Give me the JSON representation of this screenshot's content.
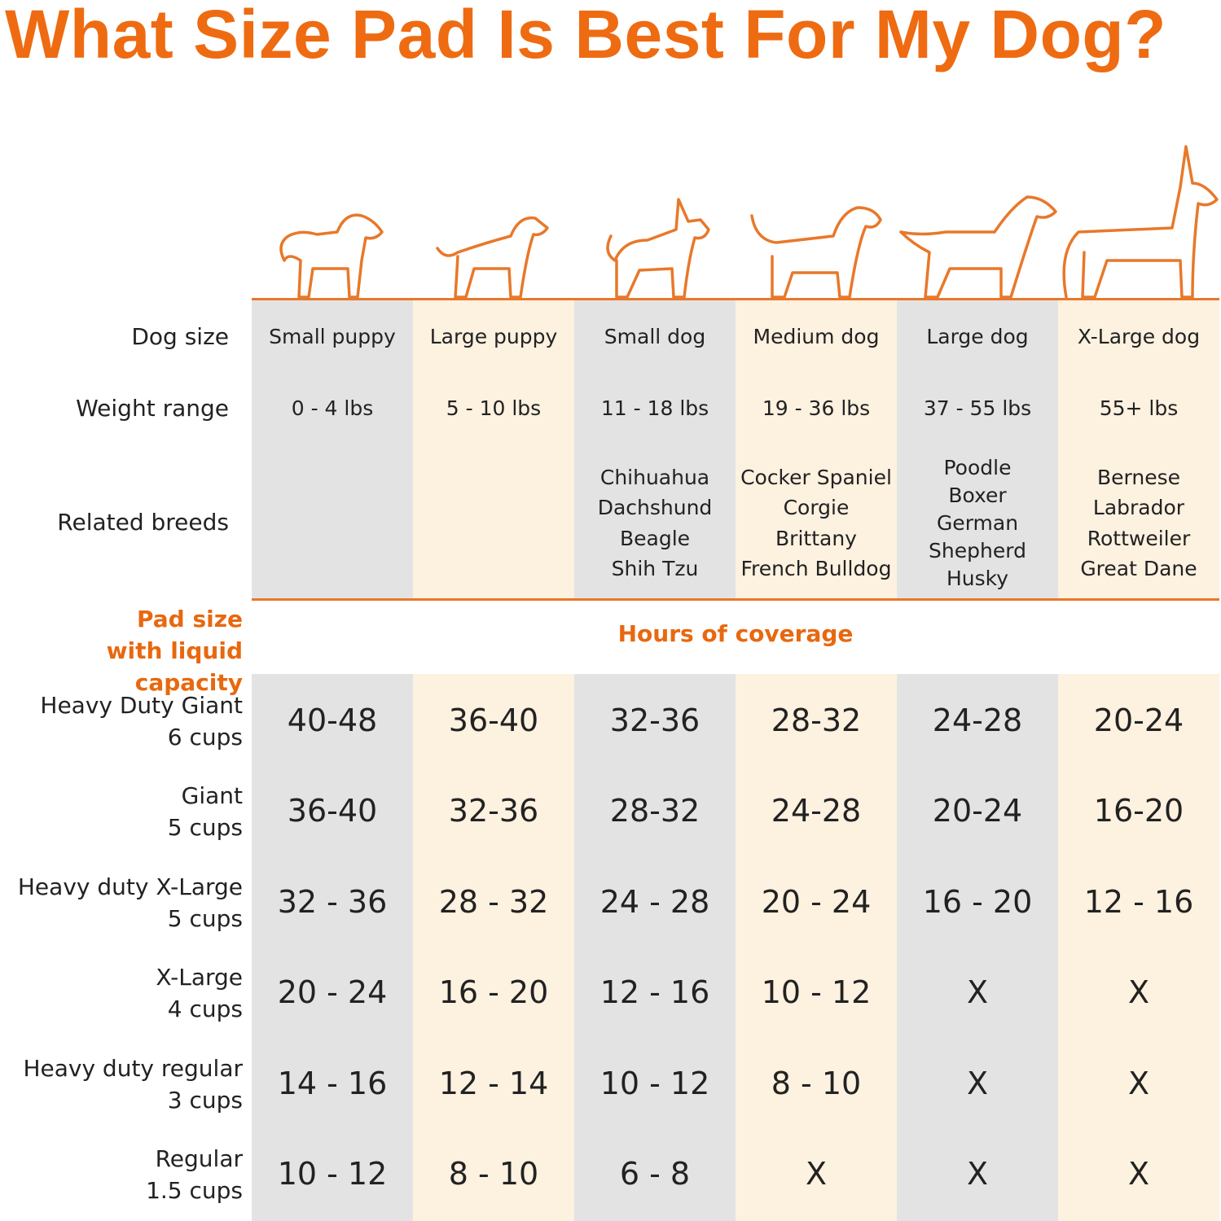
{
  "title": "What Size Pad Is Best For My Dog?",
  "colors": {
    "accent": "#ee6b12",
    "column_gray": "#e3e3e3",
    "column_cream": "#fdf1e0"
  },
  "row_labels": {
    "dog_size": "Dog size",
    "weight_range": "Weight range",
    "related_breeds": "Related breeds"
  },
  "pad_header": {
    "line1": "Pad size",
    "line2": "with liquid capacity"
  },
  "coverage_header": "Hours of coverage",
  "columns": [
    {
      "icon": "small-puppy-icon",
      "size": "Small puppy",
      "weight": "0 - 4 lbs",
      "breeds": []
    },
    {
      "icon": "large-puppy-icon",
      "size": "Large puppy",
      "weight": "5 - 10 lbs",
      "breeds": []
    },
    {
      "icon": "small-dog-icon",
      "size": "Small dog",
      "weight": "11 - 18 lbs",
      "breeds": [
        "Chihuahua",
        "Dachshund",
        "Beagle",
        "Shih Tzu"
      ]
    },
    {
      "icon": "medium-dog-icon",
      "size": "Medium dog",
      "weight": "19 - 36 lbs",
      "breeds": [
        "Cocker Spaniel",
        "Corgie",
        "Brittany",
        "French Bulldog"
      ]
    },
    {
      "icon": "large-dog-icon",
      "size": "Large dog",
      "weight": "37 - 55 lbs",
      "breeds": [
        "Poodle",
        "Boxer",
        "German",
        "Shepherd",
        "Husky"
      ]
    },
    {
      "icon": "x-large-dog-icon",
      "size": "X-Large dog",
      "weight": "55+ lbs",
      "breeds": [
        "Bernese",
        "Labrador",
        "Rottweiler",
        "Great Dane"
      ]
    }
  ],
  "pads": [
    {
      "name": "Heavy Duty Giant",
      "capacity": "6 cups",
      "hours": [
        "40-48",
        "36-40",
        "32-36",
        "28-32",
        "24-28",
        "20-24"
      ]
    },
    {
      "name": "Giant",
      "capacity": "5 cups",
      "hours": [
        "36-40",
        "32-36",
        "28-32",
        "24-28",
        "20-24",
        "16-20"
      ]
    },
    {
      "name": "Heavy duty X-Large",
      "capacity": "5 cups",
      "hours": [
        "32 - 36",
        "28 - 32",
        "24 - 28",
        "20 - 24",
        "16 - 20",
        "12 - 16"
      ]
    },
    {
      "name": "X-Large",
      "capacity": "4 cups",
      "hours": [
        "20 - 24",
        "16 - 20",
        "12 - 16",
        "10 - 12",
        "X",
        "X"
      ]
    },
    {
      "name": "Heavy duty regular",
      "capacity": "3 cups",
      "hours": [
        "14 - 16",
        "12 - 14",
        "10 - 12",
        "8 - 10",
        "X",
        "X"
      ]
    },
    {
      "name": "Regular",
      "capacity": "1.5 cups",
      "hours": [
        "10 - 12",
        "8 - 10",
        "6 - 8",
        "X",
        "X",
        "X"
      ]
    }
  ]
}
